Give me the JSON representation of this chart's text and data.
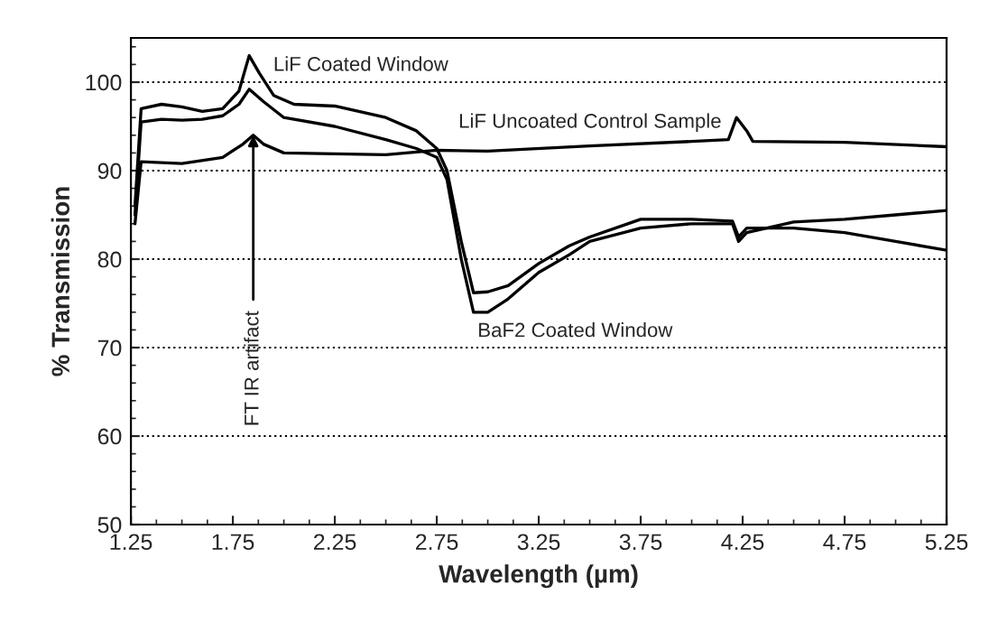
{
  "chart_data": {
    "type": "line",
    "xlabel": "Wavelength (µm)",
    "ylabel": "% Transmission",
    "xlim": [
      1.25,
      5.25
    ],
    "xticks": [
      1.25,
      1.75,
      2.25,
      2.75,
      3.25,
      3.75,
      4.25,
      4.75,
      5.25
    ],
    "ylim": [
      50,
      105
    ],
    "yticks": [
      50,
      60,
      70,
      80,
      90,
      100
    ],
    "grid": "y",
    "marker": "none",
    "line_style": "solid",
    "series": [
      {
        "color": "#000000",
        "x": [
          1.27,
          1.3,
          1.4,
          1.5,
          1.6,
          1.7,
          1.78,
          1.83,
          1.88,
          1.95,
          2.05,
          2.25,
          2.5,
          2.65,
          2.75,
          2.8,
          2.87,
          2.93,
          3.0,
          3.1,
          3.25,
          3.4,
          3.5,
          3.75,
          4.0,
          4.2,
          4.23,
          4.27,
          4.5,
          4.75,
          5.0,
          5.25
        ],
        "values": [
          86,
          97,
          97.5,
          97.2,
          96.7,
          97,
          99,
          103,
          101,
          98.5,
          97.5,
          97.3,
          96,
          94.5,
          92.5,
          90,
          82,
          76.2,
          76.3,
          77,
          79.5,
          81.5,
          82.5,
          84.5,
          84.5,
          84.3,
          82.5,
          83.5,
          83.5,
          83,
          82,
          81
        ]
      },
      {
        "color": "#000000",
        "x": [
          1.27,
          1.3,
          1.4,
          1.5,
          1.6,
          1.7,
          1.78,
          1.83,
          1.9,
          2.0,
          2.25,
          2.5,
          2.65,
          2.75,
          2.8,
          2.87,
          2.93,
          3.0,
          3.1,
          3.25,
          3.4,
          3.5,
          3.75,
          4.0,
          4.2,
          4.23,
          4.27,
          4.5,
          4.75,
          5.0,
          5.25
        ],
        "values": [
          85,
          95.5,
          95.8,
          95.7,
          95.8,
          96.2,
          97.5,
          99.2,
          97.8,
          96,
          95,
          93.5,
          92.5,
          91.5,
          89,
          80,
          74,
          74,
          75.5,
          78.5,
          80.5,
          82,
          83.5,
          84,
          84,
          82,
          83,
          84.2,
          84.5,
          85,
          85.5
        ]
      },
      {
        "color": "#000000",
        "x": [
          1.27,
          1.3,
          1.5,
          1.7,
          1.8,
          1.85,
          1.9,
          2.0,
          2.5,
          2.75,
          3.0,
          3.5,
          4.0,
          4.18,
          4.22,
          4.27,
          4.3,
          4.75,
          5.25
        ],
        "values": [
          84,
          91,
          90.8,
          91.5,
          93,
          94,
          93,
          92,
          91.8,
          92.3,
          92.2,
          92.8,
          93.3,
          93.5,
          96,
          94.5,
          93.3,
          93.2,
          92.7
        ]
      }
    ],
    "annotations": [
      {
        "text": "LiF Coated Window",
        "x": 1.85,
        "y": 103
      },
      {
        "text": "LiF Uncoated Control Sample",
        "x": 4.22,
        "y": 96
      },
      {
        "text": "BaF2 Coated Window",
        "x": 2.95,
        "y": 73.5
      },
      {
        "text": "FT IR artifact",
        "x": 1.85,
        "y": 94
      }
    ]
  }
}
